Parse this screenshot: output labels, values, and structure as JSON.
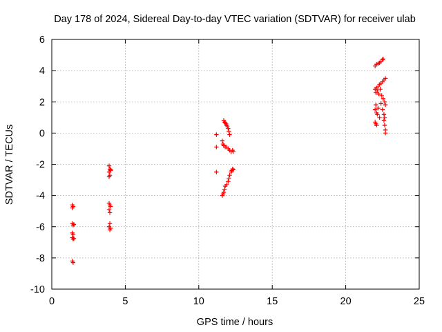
{
  "chart_data": {
    "type": "scatter",
    "title": "Day 178 of 2024, Sidereal Day-to-day VTEC variation (SDTVAR) for receiver ulab",
    "xlabel": "GPS time / hours",
    "ylabel": "SDTVAR / TECUs",
    "xlim": [
      0,
      25
    ],
    "ylim": [
      -10,
      6
    ],
    "xticks": [
      0,
      5,
      10,
      15,
      20,
      25
    ],
    "yticks": [
      -10,
      -8,
      -6,
      -4,
      -2,
      0,
      2,
      4,
      6
    ],
    "grid": true,
    "marker": "+",
    "color": "#ff0000",
    "series": [
      {
        "name": "SDTVAR",
        "points": [
          [
            1.4,
            -4.6
          ],
          [
            1.4,
            -4.8
          ],
          [
            1.45,
            -4.7
          ],
          [
            1.4,
            -5.8
          ],
          [
            1.45,
            -5.9
          ],
          [
            1.5,
            -5.85
          ],
          [
            1.4,
            -6.4
          ],
          [
            1.45,
            -6.5
          ],
          [
            1.4,
            -6.7
          ],
          [
            1.45,
            -6.8
          ],
          [
            1.5,
            -6.75
          ],
          [
            1.4,
            -8.2
          ],
          [
            1.45,
            -8.3
          ],
          [
            3.9,
            -2.1
          ],
          [
            3.95,
            -2.3
          ],
          [
            4.0,
            -2.4
          ],
          [
            3.9,
            -2.5
          ],
          [
            3.95,
            -2.7
          ],
          [
            3.9,
            -2.8
          ],
          [
            4.0,
            -2.35
          ],
          [
            3.9,
            -4.5
          ],
          [
            3.95,
            -4.6
          ],
          [
            4.0,
            -4.7
          ],
          [
            3.9,
            -4.9
          ],
          [
            3.95,
            -5.1
          ],
          [
            3.95,
            -5.8
          ],
          [
            3.9,
            -6.0
          ],
          [
            4.0,
            -6.1
          ],
          [
            3.95,
            -6.2
          ],
          [
            11.2,
            -0.1
          ],
          [
            11.2,
            -0.9
          ],
          [
            11.2,
            -2.5
          ],
          [
            11.6,
            -0.5
          ],
          [
            11.65,
            -0.7
          ],
          [
            11.7,
            -0.8
          ],
          [
            11.8,
            -0.9
          ],
          [
            11.9,
            -0.9
          ],
          [
            12.0,
            -1.0
          ],
          [
            12.1,
            -1.1
          ],
          [
            12.2,
            -1.2
          ],
          [
            12.3,
            -1.1
          ],
          [
            12.35,
            -1.2
          ],
          [
            11.7,
            0.8
          ],
          [
            11.75,
            0.7
          ],
          [
            11.8,
            0.65
          ],
          [
            11.85,
            0.6
          ],
          [
            11.9,
            0.5
          ],
          [
            11.95,
            0.4
          ],
          [
            12.0,
            0.3
          ],
          [
            12.05,
            0.1
          ],
          [
            12.1,
            -0.1
          ],
          [
            11.6,
            -4.0
          ],
          [
            11.65,
            -3.9
          ],
          [
            11.7,
            -3.8
          ],
          [
            11.75,
            -3.6
          ],
          [
            11.8,
            -3.4
          ],
          [
            11.9,
            -3.3
          ],
          [
            12.0,
            -3.1
          ],
          [
            12.05,
            -2.9
          ],
          [
            12.1,
            -2.7
          ],
          [
            12.2,
            -2.5
          ],
          [
            12.25,
            -2.4
          ],
          [
            12.3,
            -2.3
          ],
          [
            12.35,
            -2.35
          ],
          [
            22.0,
            4.3
          ],
          [
            22.1,
            4.4
          ],
          [
            22.2,
            4.45
          ],
          [
            22.3,
            4.5
          ],
          [
            22.4,
            4.6
          ],
          [
            22.5,
            4.7
          ],
          [
            22.55,
            4.75
          ],
          [
            22.0,
            2.8
          ],
          [
            22.05,
            2.6
          ],
          [
            22.1,
            2.9
          ],
          [
            22.15,
            2.7
          ],
          [
            22.2,
            3.0
          ],
          [
            22.25,
            2.5
          ],
          [
            22.3,
            3.1
          ],
          [
            22.35,
            2.8
          ],
          [
            22.4,
            3.2
          ],
          [
            22.45,
            2.4
          ],
          [
            22.5,
            3.3
          ],
          [
            22.55,
            2.2
          ],
          [
            22.6,
            3.4
          ],
          [
            22.65,
            2.0
          ],
          [
            22.7,
            3.5
          ],
          [
            22.7,
            1.8
          ],
          [
            22.0,
            1.5
          ],
          [
            22.05,
            1.8
          ],
          [
            22.1,
            1.3
          ],
          [
            22.15,
            1.2
          ],
          [
            22.2,
            1.6
          ],
          [
            22.3,
            1.0
          ],
          [
            22.4,
            1.9
          ],
          [
            22.5,
            1.5
          ],
          [
            22.6,
            1.2
          ],
          [
            22.0,
            0.7
          ],
          [
            22.05,
            0.6
          ],
          [
            22.1,
            0.5
          ],
          [
            22.6,
            0.8
          ],
          [
            22.65,
            0.5
          ],
          [
            22.7,
            0.2
          ],
          [
            22.7,
            0.0
          ],
          [
            22.65,
            1.0
          ]
        ]
      }
    ]
  }
}
